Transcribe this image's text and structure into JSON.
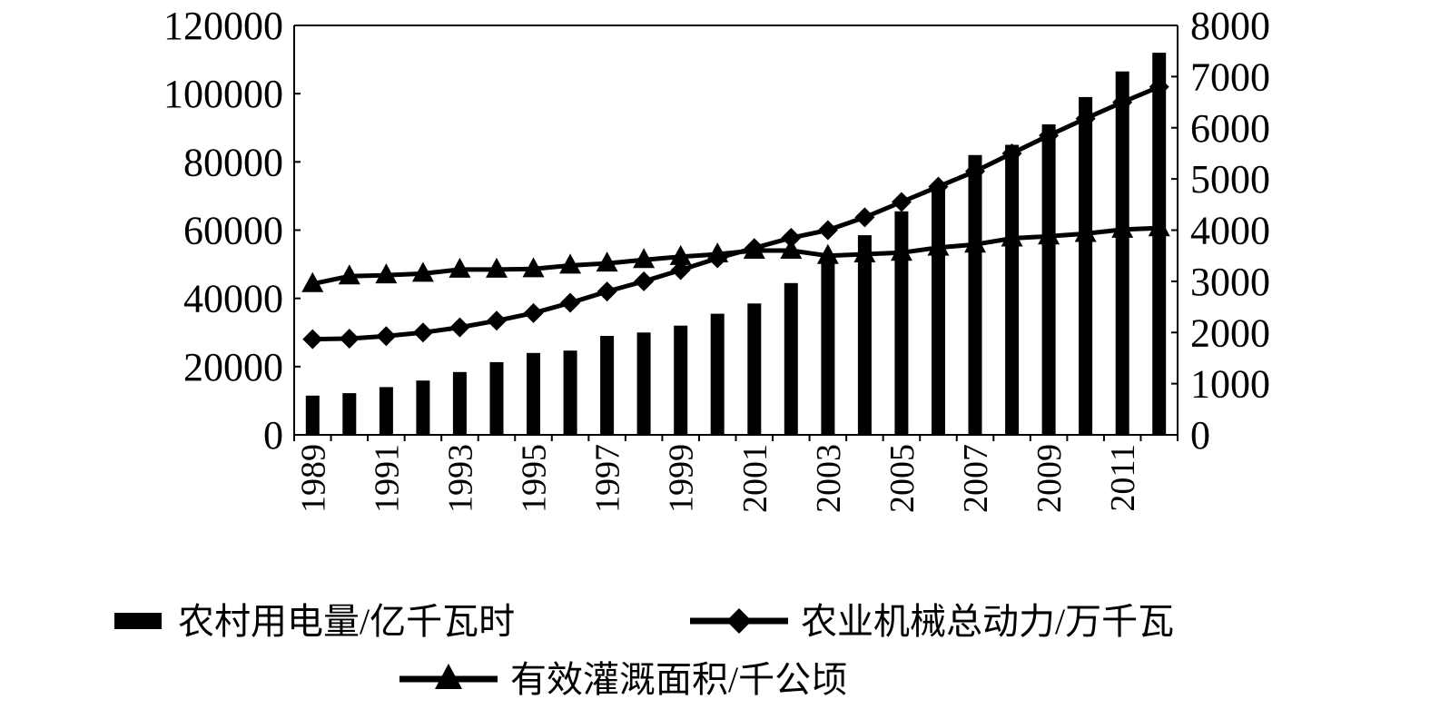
{
  "chart_data": {
    "type": "bar",
    "x": [
      "1989",
      "1990",
      "1991",
      "1992",
      "1993",
      "1994",
      "1995",
      "1996",
      "1997",
      "1998",
      "1999",
      "2000",
      "2001",
      "2002",
      "2003",
      "2004",
      "2005",
      "2006",
      "2007",
      "2008",
      "2009",
      "2010",
      "2011",
      "2012"
    ],
    "x_tick_labels": [
      "1989",
      "1991",
      "1993",
      "1995",
      "1997",
      "1999",
      "2001",
      "2003",
      "2005",
      "2007",
      "2009",
      "2011"
    ],
    "series": [
      {
        "name": "农村用电量/亿千瓦时",
        "type": "bar",
        "axis": "left",
        "marker": "bar",
        "values": [
          11500,
          12200,
          14000,
          15900,
          18400,
          21300,
          24000,
          24700,
          29000,
          30000,
          32000,
          35500,
          38500,
          44500,
          52000,
          58500,
          65500,
          73000,
          82000,
          85000,
          91000,
          99000,
          106500,
          112000
        ]
      },
      {
        "name": "农业机械总动力/万千瓦",
        "type": "line",
        "axis": "right",
        "marker": "diamond",
        "values": [
          1870,
          1880,
          1930,
          2000,
          2100,
          2230,
          2380,
          2580,
          2800,
          3000,
          3220,
          3450,
          3650,
          3850,
          4000,
          4250,
          4550,
          4850,
          5150,
          5500,
          5850,
          6180,
          6500,
          6800
        ]
      },
      {
        "name": "有效灌溉面积/千公顷",
        "type": "line",
        "axis": "right",
        "marker": "triangle",
        "values": [
          2950,
          3100,
          3120,
          3150,
          3230,
          3230,
          3240,
          3310,
          3350,
          3420,
          3480,
          3530,
          3600,
          3600,
          3500,
          3530,
          3560,
          3660,
          3720,
          3840,
          3880,
          3930,
          4010,
          4040
        ]
      }
    ],
    "y_left": {
      "ylim": [
        0,
        120000
      ],
      "ticks": [
        "0",
        "20000",
        "40000",
        "60000",
        "80000",
        "100000",
        "120000"
      ]
    },
    "y_right": {
      "ylim": [
        0,
        8000
      ],
      "ticks": [
        "0",
        "1000",
        "2000",
        "3000",
        "4000",
        "5000",
        "6000",
        "7000",
        "8000"
      ]
    },
    "grid": false,
    "legend_position": "bottom",
    "colors": {
      "bar": "#000000",
      "line": "#000000",
      "axis": "#000000",
      "background": "#ffffff"
    }
  }
}
